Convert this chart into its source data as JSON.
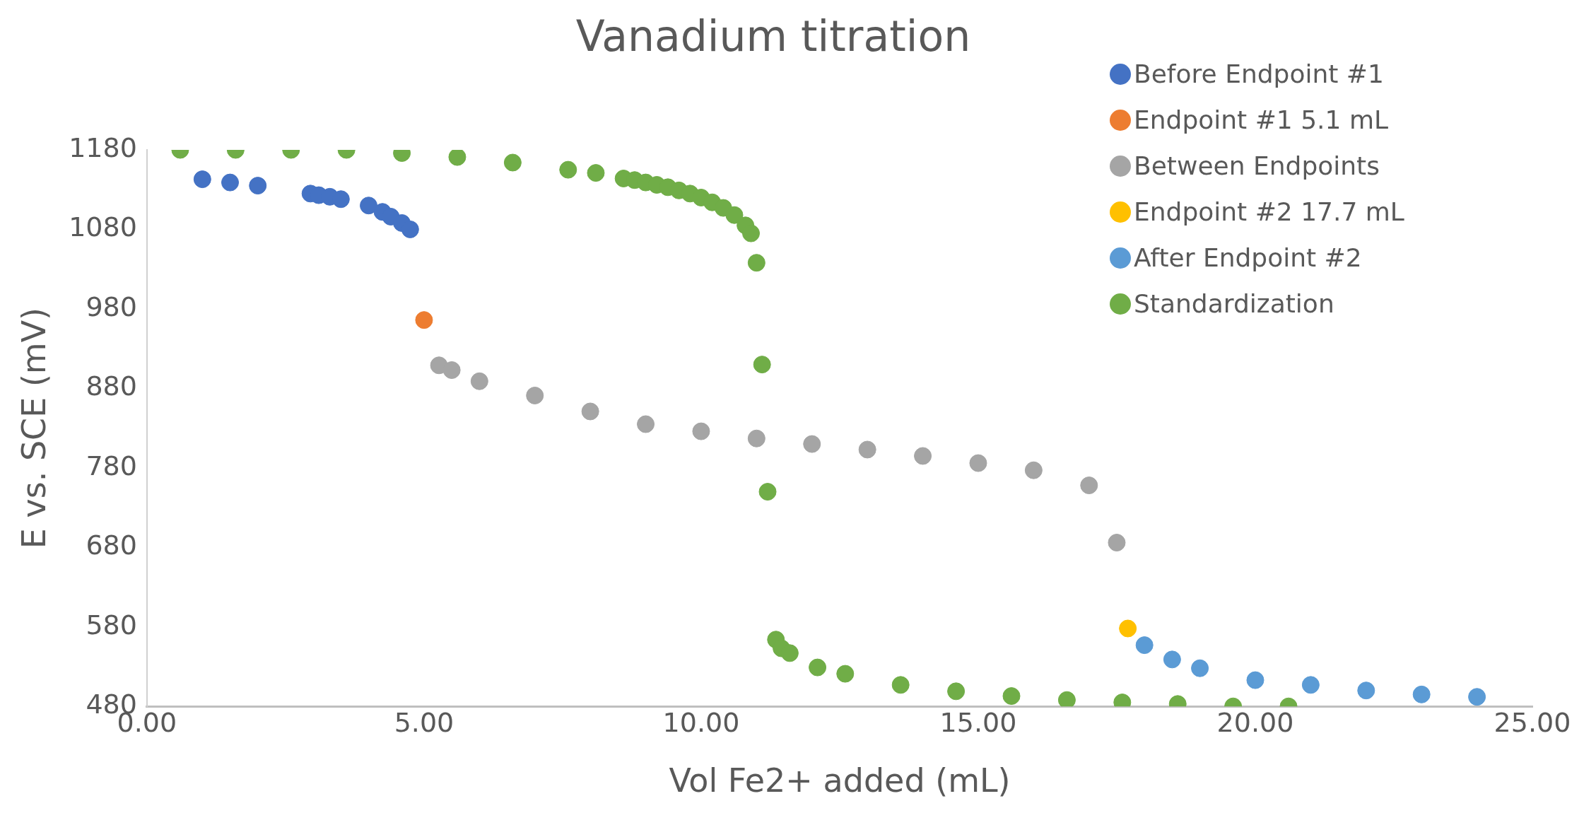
{
  "chart_data": {
    "type": "scatter",
    "title": "Vanadium titration",
    "xlabel": "Vol Fe2+ added (mL)",
    "ylabel": "E vs. SCE (mV)",
    "xlim": [
      0,
      25
    ],
    "xticks": [
      {
        "value": 0,
        "label": "0.00"
      },
      {
        "value": 5,
        "label": "5.00"
      },
      {
        "value": 10,
        "label": "10.00"
      },
      {
        "value": 15,
        "label": "15.00"
      },
      {
        "value": 20,
        "label": "20.00"
      },
      {
        "value": 25,
        "label": "25.00"
      }
    ],
    "ylim": [
      480,
      1180
    ],
    "yticks": [
      480,
      580,
      680,
      780,
      880,
      980,
      1080,
      1180
    ],
    "grid": false,
    "legend": "top right",
    "marker": "circle",
    "series": [
      {
        "name": "Before Endpoint #1",
        "color": "#4472c4",
        "x": [
          1.0,
          1.5,
          2.0,
          2.95,
          3.1,
          3.3,
          3.5,
          4.0,
          4.25,
          4.4,
          4.6,
          4.75
        ],
        "values": [
          1143,
          1139,
          1135,
          1125,
          1123,
          1121,
          1118,
          1110,
          1102,
          1096,
          1088,
          1080
        ]
      },
      {
        "name": "Endpoint #1 5.1 mL",
        "color": "#ed7d31",
        "x": [
          5.0
        ],
        "values": [
          966
        ]
      },
      {
        "name": "Between Endpoints",
        "color": "#a5a5a5",
        "x": [
          5.27,
          5.5,
          6,
          7,
          8,
          9,
          10,
          11,
          12,
          13,
          14,
          15,
          16,
          17,
          17.5
        ],
        "values": [
          909,
          903,
          889,
          871,
          851,
          835,
          826,
          817,
          810,
          803,
          795,
          786,
          777,
          758,
          686
        ]
      },
      {
        "name": "Endpoint #2 17.7 mL",
        "color": "#ffc000",
        "x": [
          17.7
        ],
        "values": [
          578
        ]
      },
      {
        "name": "After Endpoint #2",
        "color": "#5b9bd5",
        "x": [
          18,
          18.5,
          19,
          20,
          21,
          22,
          23,
          24
        ],
        "values": [
          557,
          539,
          528,
          513,
          507,
          500,
          495,
          492
        ]
      },
      {
        "name": "Standardization",
        "color": "#70ad47",
        "x": [
          0.6,
          1.6,
          2.6,
          3.6,
          4.6,
          5.6,
          6.6,
          7.6,
          8.1,
          8.6,
          8.8,
          9.0,
          9.2,
          9.4,
          9.6,
          9.8,
          10.0,
          10.2,
          10.4,
          10.6,
          10.8,
          10.9,
          11.0,
          11.1,
          11.2,
          11.35,
          11.45,
          11.6,
          12.1,
          12.6,
          13.6,
          14.6,
          15.6,
          16.6,
          17.6,
          18.6,
          19.6,
          20.6
        ],
        "values": [
          1180,
          1180,
          1180,
          1180,
          1176,
          1171,
          1164,
          1155,
          1151,
          1144,
          1142,
          1139,
          1136,
          1133,
          1129,
          1125,
          1120,
          1114,
          1107,
          1098,
          1085,
          1075,
          1038,
          910,
          750,
          564,
          553,
          547,
          529,
          521,
          507,
          499,
          493,
          488,
          485,
          483,
          480,
          480
        ]
      }
    ]
  }
}
